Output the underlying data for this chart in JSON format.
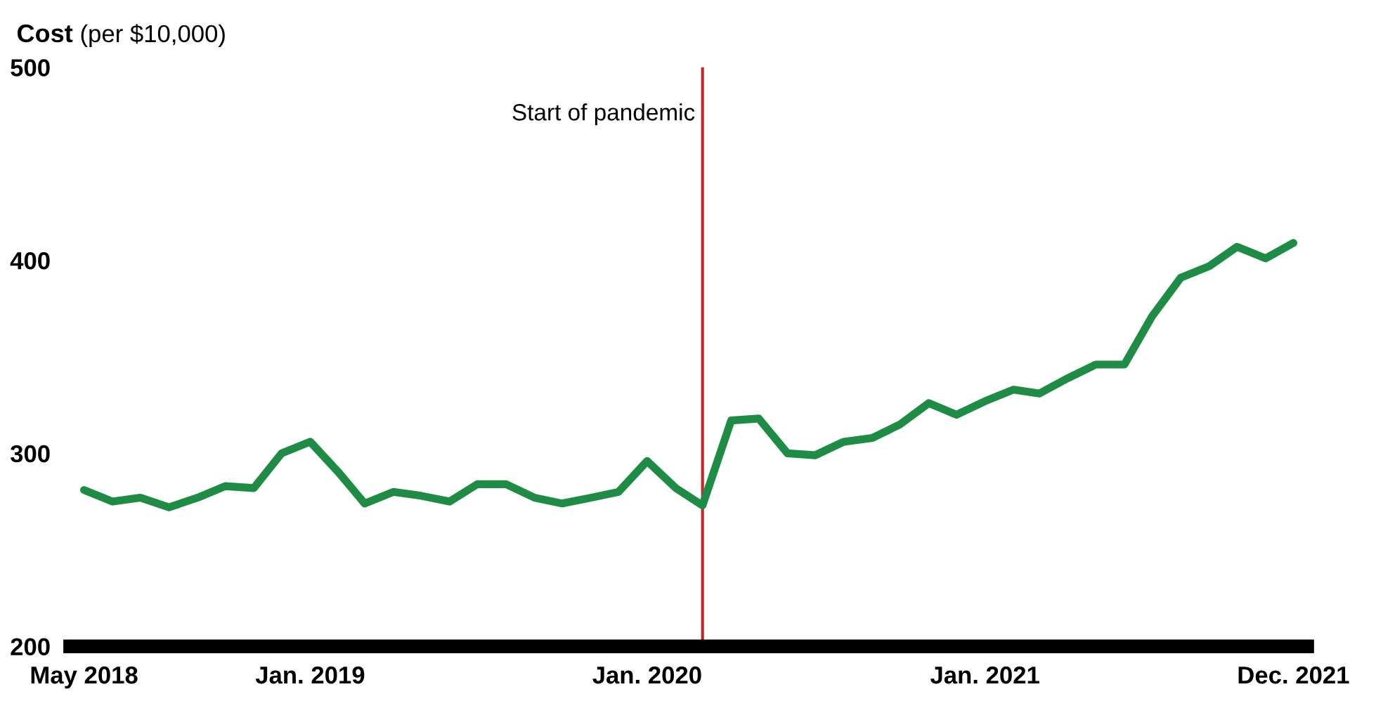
{
  "chart_data": {
    "type": "line",
    "title": "Cost",
    "subtitle": "(per $10,000)",
    "x": [
      "2018-05",
      "2018-06",
      "2018-07",
      "2018-08",
      "2018-09",
      "2018-10",
      "2018-11",
      "2018-12",
      "2019-01",
      "2019-02",
      "2019-03",
      "2019-04",
      "2019-05",
      "2019-06",
      "2019-07",
      "2019-08",
      "2019-09",
      "2019-10",
      "2019-11",
      "2019-12",
      "2020-01",
      "2020-02",
      "2020-03",
      "2020-04",
      "2020-05",
      "2020-06",
      "2020-07",
      "2020-08",
      "2020-09",
      "2020-10",
      "2020-11",
      "2020-12",
      "2021-01",
      "2021-02",
      "2021-03",
      "2021-04",
      "2021-05",
      "2021-06",
      "2021-07",
      "2021-08",
      "2021-09",
      "2021-10",
      "2021-11",
      "2021-12"
    ],
    "series": [
      {
        "color": "#1e8c45",
        "values": [
          281,
          275,
          277,
          272,
          277,
          283,
          282,
          300,
          306,
          290,
          274,
          280,
          278,
          275,
          284,
          284,
          277,
          274,
          277,
          280,
          296,
          282,
          273,
          317,
          318,
          300,
          299,
          306,
          308,
          315,
          326,
          320,
          327,
          333,
          331,
          339,
          346,
          346,
          371,
          391,
          397,
          407,
          401,
          409
        ]
      }
    ],
    "xlim": [
      "2018-04-16",
      "2021-12-16"
    ],
    "xticks": [
      {
        "value": "2018-05",
        "label": "May 2018"
      },
      {
        "value": "2019-01",
        "label": "Jan. 2019"
      },
      {
        "value": "2020-01",
        "label": "Jan. 2020"
      },
      {
        "value": "2021-01",
        "label": "Jan. 2021"
      },
      {
        "value": "2021-12",
        "label": "Dec. 2021"
      }
    ],
    "ylim": [
      200,
      500
    ],
    "yticks": [
      200,
      300,
      400,
      500
    ],
    "ref_lines": [
      {
        "axis": "x",
        "value": "2020-03",
        "label": "Start of pandemic",
        "color": "#c0282d"
      }
    ],
    "grid": false,
    "legend": false,
    "marker": "none",
    "line_style": "solid"
  }
}
